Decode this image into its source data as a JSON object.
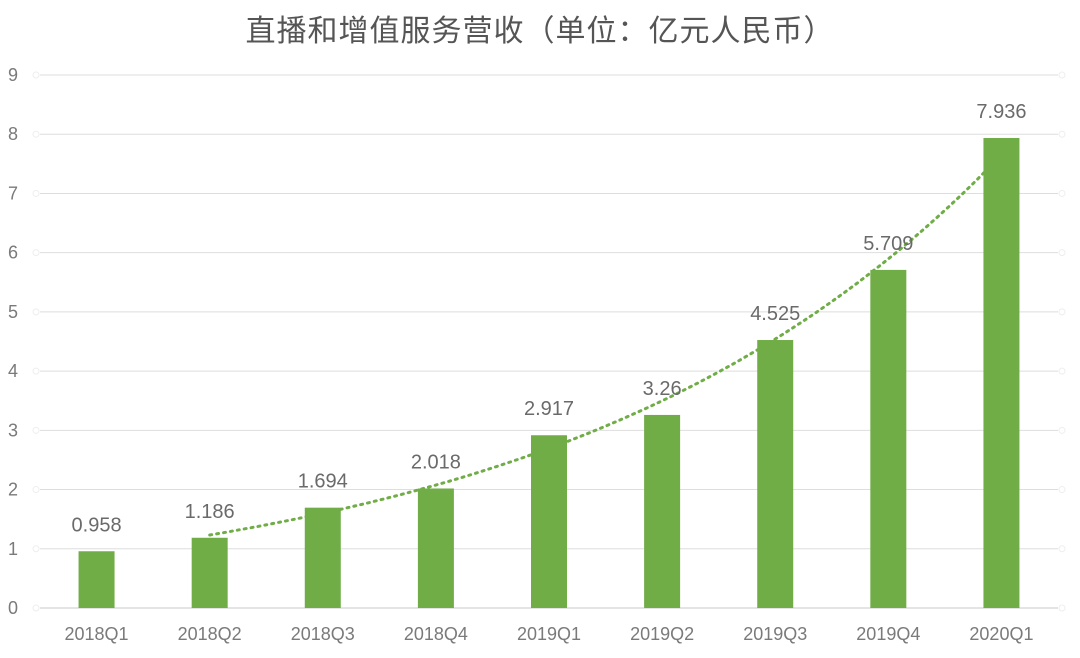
{
  "chart_data": {
    "type": "bar",
    "title": "直播和增值服务营收（单位：亿元人民币）",
    "categories": [
      "2018Q1",
      "2018Q2",
      "2018Q3",
      "2018Q4",
      "2019Q1",
      "2019Q2",
      "2019Q3",
      "2019Q4",
      "2020Q1"
    ],
    "series": [
      {
        "values": [
          0.958,
          1.186,
          1.694,
          2.018,
          2.917,
          3.26,
          4.525,
          5.709,
          7.936
        ],
        "color": "#70ad47"
      }
    ],
    "data_labels": [
      "0.958",
      "1.186",
      "1.694",
      "2.018",
      "2.917",
      "3.26",
      "4.525",
      "5.709",
      "7.936"
    ],
    "yticks": [
      "0",
      "1",
      "2",
      "3",
      "4",
      "5",
      "6",
      "7",
      "8",
      "9"
    ],
    "ylim": [
      0,
      9
    ],
    "grid": true,
    "trendline": {
      "type": "dotted",
      "color": "#70ad47",
      "start_category": "2018Q2",
      "end_category": "2020Q1"
    },
    "xlabel": "",
    "ylabel": ""
  }
}
